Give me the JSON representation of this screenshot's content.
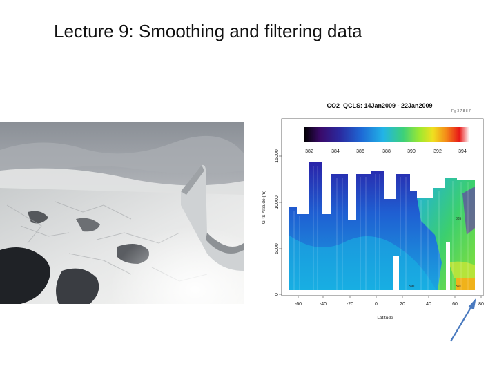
{
  "slide": {
    "title": "Lecture 9: Smoothing and filtering data"
  },
  "figure": {
    "title": "CO2_QCLS: 14Jan2009 - 22Jan2009",
    "page_note": "Fig 3 7 8 8 7",
    "colorbar": {
      "ticks": [
        "382",
        "384",
        "386",
        "388",
        "390",
        "392",
        "394"
      ],
      "colors": [
        "#000000",
        "#3a0a6a",
        "#2a2aa0",
        "#1e6ad6",
        "#22b4e6",
        "#3cd07a",
        "#9ee830",
        "#f0e020",
        "#f48a18",
        "#e81818",
        "#ffffff"
      ]
    },
    "x_axis": {
      "label": "Latitude",
      "ticks": [
        "-60",
        "-40",
        "-20",
        "0",
        "20",
        "40",
        "60",
        "80"
      ]
    },
    "y_axis": {
      "label": "GPS Altitude (m)",
      "ticks": [
        "0",
        "5000",
        "10000",
        "15000"
      ]
    },
    "inline_labels": [
      "385",
      "390",
      "391"
    ]
  },
  "colors": {
    "arrow": "#4a7abf",
    "title_text": "#111111"
  }
}
